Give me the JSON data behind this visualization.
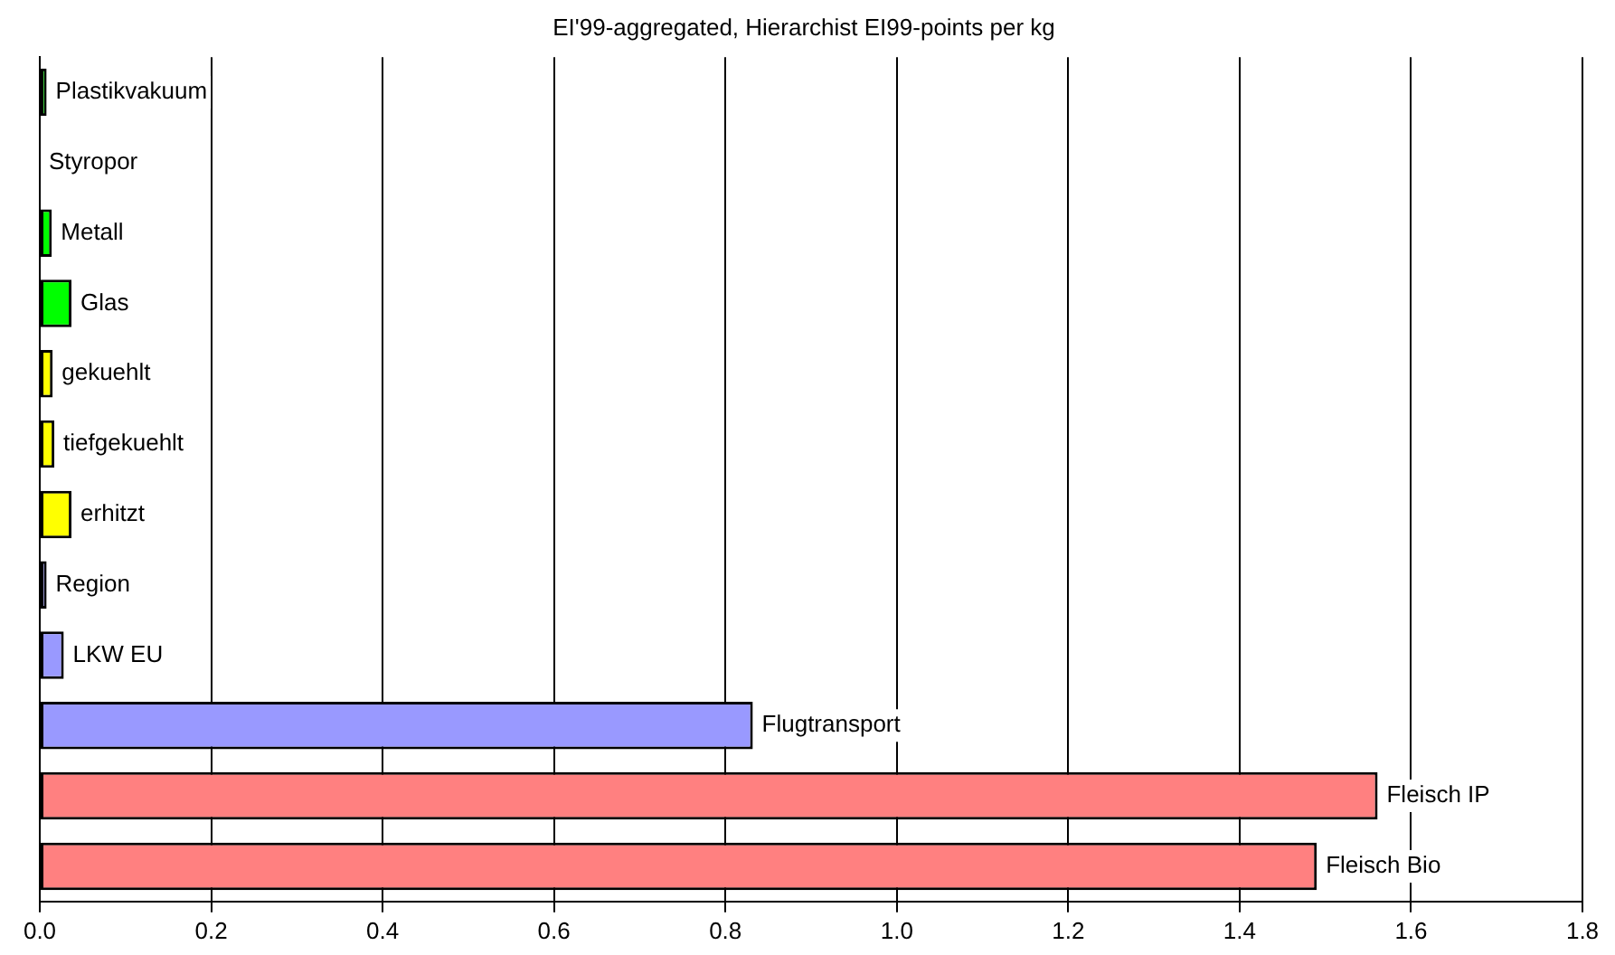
{
  "chart_data": {
    "type": "bar",
    "orientation": "horizontal",
    "title": "EI'99-aggregated, Hierarchist EI99-points per kg",
    "categories": [
      "Plastikvakuum",
      "Styropor",
      "Metall",
      "Glas",
      "gekuehlt",
      "tiefgekuehlt",
      "erhitzt",
      "Region",
      "LKW EU",
      "Flugtransport",
      "Fleisch IP",
      "Fleisch Bio"
    ],
    "values": [
      0.008,
      0,
      0.014,
      0.037,
      0.015,
      0.017,
      0.037,
      0.008,
      0.028,
      0.832,
      1.561,
      1.49
    ],
    "colors": [
      "#00ff00",
      "#00ff00",
      "#00ff00",
      "#00ff00",
      "#ffff00",
      "#ffff00",
      "#ffff00",
      "#9999ff",
      "#9999ff",
      "#9999ff",
      "#ff8080",
      "#ff8080"
    ],
    "xlim": [
      0,
      1.8
    ],
    "xticks": [
      {
        "value": 0,
        "label": "0.0"
      },
      0.2,
      0.4,
      0.6,
      0.8,
      {
        "value": 1,
        "label": "1.0"
      },
      1.2,
      1.4,
      1.6,
      1.8
    ],
    "grid": "x",
    "tick_labels": "x"
  }
}
